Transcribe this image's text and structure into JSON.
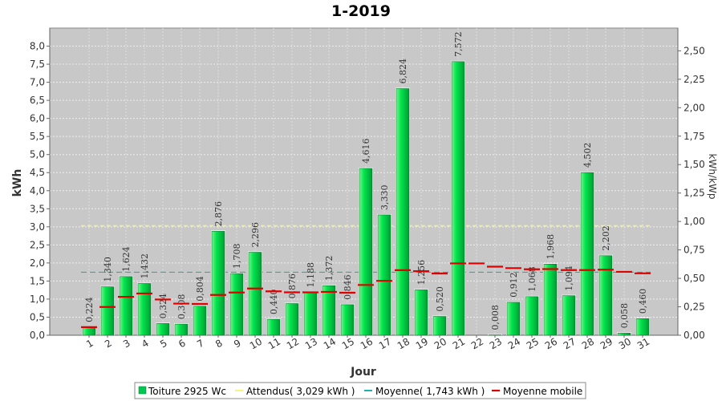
{
  "chart_data": {
    "type": "bar",
    "title": "1-2019",
    "xlabel": "Jour",
    "ylabel": "kWh",
    "y2label": "kWh/kWp",
    "ylim": [
      0,
      8.5
    ],
    "y2lim": [
      0,
      2.7
    ],
    "grid": true,
    "legend_position": "bottom",
    "categories": [
      "1",
      "2",
      "3",
      "4",
      "5",
      "6",
      "7",
      "8",
      "9",
      "10",
      "11",
      "12",
      "13",
      "14",
      "15",
      "16",
      "17",
      "18",
      "19",
      "20",
      "21",
      "22",
      "23",
      "24",
      "25",
      "26",
      "27",
      "28",
      "29",
      "30",
      "31"
    ],
    "y_ticks": [
      "0,0",
      "0,5",
      "1,0",
      "1,5",
      "2,0",
      "2,5",
      "3,0",
      "3,5",
      "4,0",
      "4,5",
      "5,0",
      "5,5",
      "6,0",
      "6,5",
      "7,0",
      "7,5",
      "8,0"
    ],
    "y2_ticks": [
      "0,00",
      "0,25",
      "0,50",
      "0,75",
      "1,00",
      "1,25",
      "1,50",
      "1,75",
      "2,00",
      "2,25",
      "2,50"
    ],
    "series": [
      {
        "name": "Toiture 2925 Wc",
        "values": [
          0.224,
          1.34,
          1.624,
          1.432,
          0.324,
          0.308,
          0.804,
          2.876,
          1.708,
          2.296,
          0.44,
          0.876,
          1.188,
          1.372,
          0.846,
          4.616,
          3.33,
          6.824,
          1.256,
          0.52,
          7.572,
          null,
          0.008,
          0.912,
          1.068,
          1.968,
          1.094,
          4.502,
          2.202,
          0.058,
          0.46
        ],
        "labels": [
          "0,224",
          "1,340",
          "1,624",
          "1,432",
          "0,324",
          "0,308",
          "0,804",
          "2,876",
          "1,708",
          "2,296",
          "0,440",
          "0,876",
          "1,188",
          "1,372",
          "0,846",
          "4,616",
          "3,330",
          "6,824",
          "1,256",
          "0,520",
          "7,572",
          "",
          "0,008",
          "0,912",
          "1,068",
          "1,968",
          "1,094",
          "4,502",
          "2,202",
          "0,058",
          "0,460"
        ],
        "color": "#00c853"
      },
      {
        "name": "Attendus( 3,029 kWh )",
        "value": 3.029,
        "color": "#f5f57a"
      },
      {
        "name": "Moyenne( 1,743 kWh )",
        "value": 1.743,
        "color": "#20b2aa"
      },
      {
        "name": "Moyenne mobile",
        "values": [
          0.224,
          0.782,
          1.063,
          1.155,
          0.989,
          0.875,
          0.865,
          1.116,
          1.182,
          1.293,
          1.215,
          1.187,
          1.187,
          1.2,
          1.176,
          1.391,
          1.505,
          1.801,
          1.772,
          1.709,
          1.988,
          1.988,
          1.898,
          1.857,
          1.826,
          1.831,
          1.803,
          1.803,
          1.814,
          1.755,
          1.713
        ],
        "color": "#e00000"
      }
    ]
  }
}
